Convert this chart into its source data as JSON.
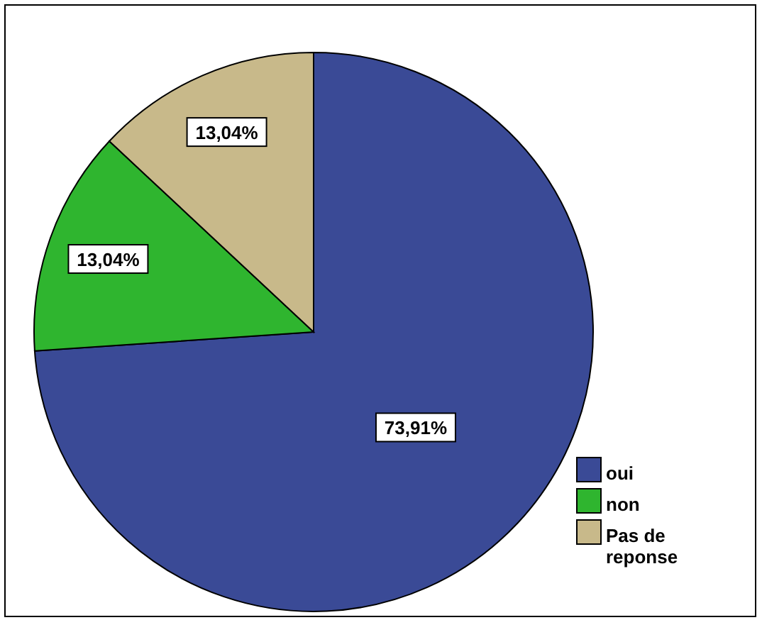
{
  "chart_data": {
    "type": "pie",
    "categories": [
      "oui",
      "non",
      "Pas de reponse"
    ],
    "values": [
      73.91,
      13.04,
      13.04
    ],
    "colors": [
      "#3a4a96",
      "#2fb52f",
      "#c8b98a"
    ],
    "value_labels": [
      "73,91%",
      "13,04%",
      "13,04%"
    ],
    "legend": "bottom right"
  }
}
